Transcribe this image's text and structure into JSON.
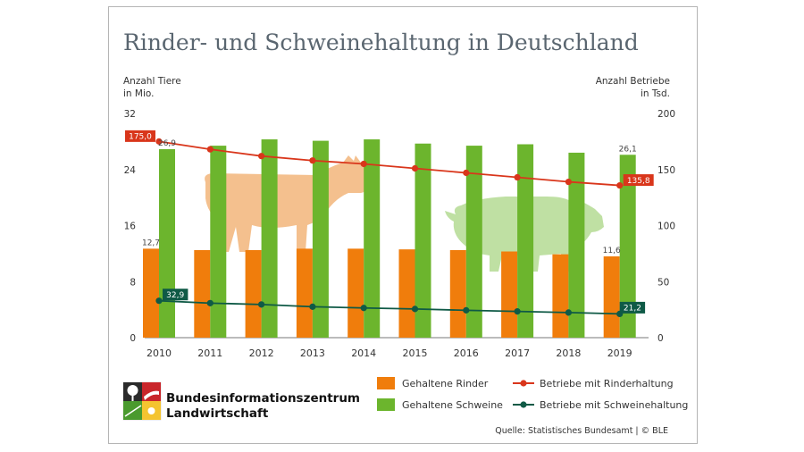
{
  "colors": {
    "cattle_bar": "#f07d0c",
    "pig_bar": "#6cb52d",
    "cattle_line": "#d9361b",
    "pig_line": "#0f5a46",
    "cow_silhouette": "#f4c08e",
    "pig_silhouette": "#bfe0a3",
    "title": "#5a6670"
  },
  "icons": {
    "cow": "cow-silhouette",
    "pig": "pig-silhouette",
    "logo": "bzl-logo"
  },
  "chart_data": {
    "type": "bar",
    "title": "Rinder- und Schweinehaltung in Deutschland",
    "ylabel_left": [
      "Anzahl Tiere",
      "in Mio."
    ],
    "ylabel_right": [
      "Anzahl Betriebe",
      "in Tsd."
    ],
    "ylim_left": [
      0,
      32
    ],
    "yticks_left": [
      0,
      8,
      16,
      24,
      32
    ],
    "ylim_right": [
      0,
      200
    ],
    "yticks_right": [
      0,
      50,
      100,
      150,
      200
    ],
    "categories": [
      "2010",
      "2011",
      "2012",
      "2013",
      "2014",
      "2015",
      "2016",
      "2017",
      "2018",
      "2019"
    ],
    "series": [
      {
        "name": "Gehaltene Rinder",
        "type": "bar",
        "axis": "left",
        "values": [
          12.7,
          12.5,
          12.5,
          12.7,
          12.7,
          12.6,
          12.5,
          12.3,
          11.9,
          11.6
        ]
      },
      {
        "name": "Gehaltene Schweine",
        "type": "bar",
        "axis": "left",
        "values": [
          26.9,
          27.4,
          28.3,
          28.1,
          28.3,
          27.7,
          27.4,
          27.6,
          26.4,
          26.1
        ]
      },
      {
        "name": "Betriebe mit Rinderhaltung",
        "type": "line",
        "axis": "right",
        "values": [
          175.0,
          168.0,
          162.0,
          158.0,
          155.0,
          151.0,
          147.0,
          143.0,
          139.0,
          135.8
        ]
      },
      {
        "name": "Betriebe mit Schweinehaltung",
        "type": "line",
        "axis": "right",
        "values": [
          32.9,
          30.8,
          29.6,
          27.6,
          26.5,
          25.6,
          24.4,
          23.4,
          22.4,
          21.2
        ]
      }
    ],
    "bar_labels": {
      "cattle": [
        {
          "index": 0,
          "text": "12,7"
        },
        {
          "index": 9,
          "text": "11,6"
        }
      ],
      "pigs": [
        {
          "index": 0,
          "text": "26,9"
        },
        {
          "index": 9,
          "text": "26,1"
        }
      ]
    },
    "line_labels": {
      "cattle": [
        {
          "index": 0,
          "text": "175,0"
        },
        {
          "index": 9,
          "text": "135,8"
        }
      ],
      "pigs": [
        {
          "index": 0,
          "text": "32,9"
        },
        {
          "index": 9,
          "text": "21,2"
        }
      ]
    },
    "legend": {
      "cattle_bar": "Gehaltene Rinder",
      "pig_bar": "Gehaltene Schweine",
      "cattle_line": "Betriebe mit Rinderhaltung",
      "pig_line": "Betriebe mit Schweinehaltung"
    },
    "grid": false,
    "legend_position": "bottom"
  },
  "logo": {
    "line1": "Bundesinformationszentrum",
    "line2": "Landwirtschaft"
  },
  "source": "Quelle: Statistisches Bundesamt | © BLE"
}
